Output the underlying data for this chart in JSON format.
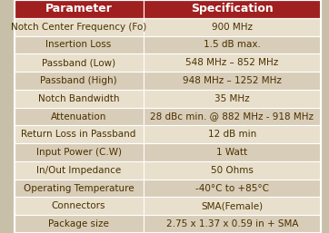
{
  "header": [
    "Parameter",
    "Specification"
  ],
  "rows": [
    [
      "Notch Center Frequency (Fo)",
      "900 MHz"
    ],
    [
      "Insertion Loss",
      "1.5 dB max."
    ],
    [
      "Passband (Low)",
      "548 MHz – 852 MHz"
    ],
    [
      "Passband (High)",
      "948 MHz – 1252 MHz"
    ],
    [
      "Notch Bandwidth",
      "35 MHz"
    ],
    [
      "Attenuation",
      "28 dBc min. @ 882 MHz - 918 MHz"
    ],
    [
      "Return Loss in Passband",
      "12 dB min"
    ],
    [
      "Input Power (C.W)",
      "1 Watt"
    ],
    [
      "In/Out Impedance",
      "50 Ohms"
    ],
    [
      "Operating Temperature",
      "-40°C to +85°C"
    ],
    [
      "Connectors",
      "SMA(Female)"
    ],
    [
      "Package size",
      "2.75 x 1.37 x 0.59 in + SMA"
    ]
  ],
  "header_bg": "#a02020",
  "header_text_color": "#ffffff",
  "row_bg_odd": "#e8e0cc",
  "row_bg_even": "#d8cdb8",
  "border_color": "#ffffff",
  "text_color": "#4a3000",
  "font_size": 7.5,
  "header_font_size": 9,
  "col_split": 0.42,
  "fig_bg": "#c8bfa8"
}
